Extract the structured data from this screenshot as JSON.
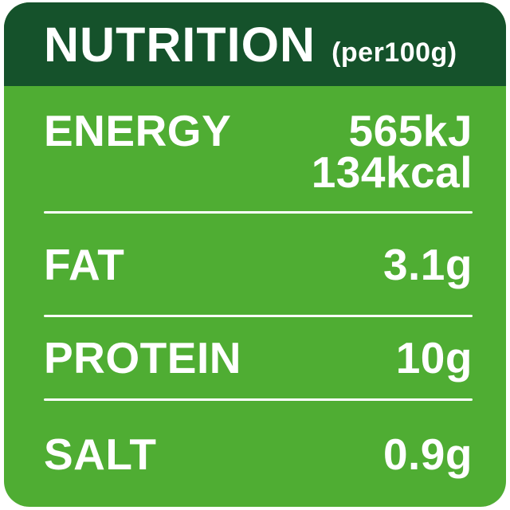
{
  "label": {
    "title": "NUTRITION",
    "subtitle": "(per100g)",
    "rows": [
      {
        "name": "ENERGY",
        "value_line1": "565kJ",
        "value_line2": "134kcal"
      },
      {
        "name": "FAT",
        "value_line1": "3.1g",
        "value_line2": ""
      },
      {
        "name": "PROTEIN",
        "value_line1": "10g",
        "value_line2": ""
      },
      {
        "name": "SALT",
        "value_line1": "0.9g",
        "value_line2": ""
      }
    ]
  },
  "colors": {
    "header_bg": "#15522B",
    "body_bg": "#4FAD33",
    "text": "#FFFFFF",
    "page_bg": "#FFFFFF"
  }
}
